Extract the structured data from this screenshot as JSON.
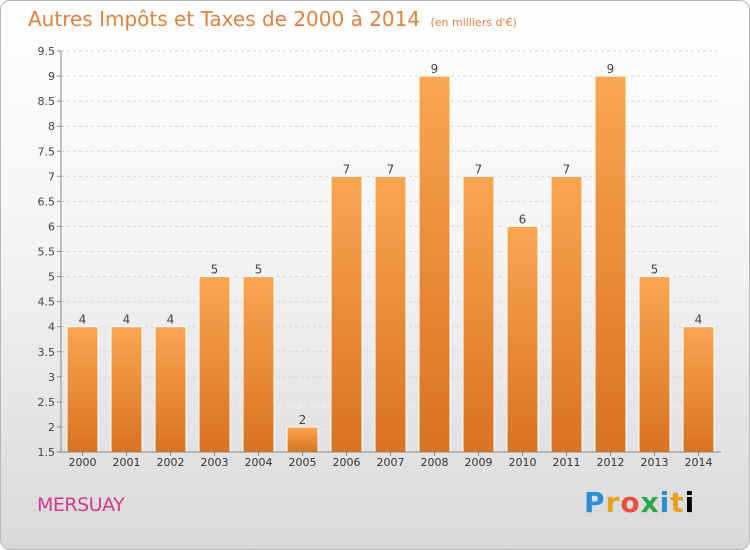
{
  "header": {
    "title": "Autres Impôts et Taxes de 2000 à 2014",
    "unit": "(en milliers d'€)"
  },
  "footer": {
    "place": "MERSUAY",
    "logo": [
      "P",
      "r",
      "o",
      "x",
      "i",
      "t",
      "i"
    ]
  },
  "colors": {
    "bar_top": "#f9a653",
    "bar_bottom": "#d9731f",
    "title": "#e3803d",
    "place": "#d23a8c"
  },
  "chart_data": {
    "type": "bar",
    "title": "Autres Impôts et Taxes de 2000 à 2014",
    "xlabel": "",
    "ylabel": "",
    "categories": [
      "2000",
      "2001",
      "2002",
      "2003",
      "2004",
      "2005",
      "2006",
      "2007",
      "2008",
      "2009",
      "2010",
      "2011",
      "2012",
      "2013",
      "2014"
    ],
    "values": [
      4,
      4,
      4,
      5,
      5,
      2,
      7,
      7,
      9,
      7,
      6,
      7,
      9,
      5,
      4
    ],
    "data_labels": [
      "4",
      "4",
      "4",
      "5",
      "5",
      "2",
      "7",
      "7",
      "9",
      "7",
      "6",
      "7",
      "9",
      "5",
      "4"
    ],
    "ylim": [
      1.5,
      9.5
    ],
    "yticks": [
      1.5,
      2,
      2.5,
      3,
      3.5,
      4,
      4.5,
      5,
      5.5,
      6,
      6.5,
      7,
      7.5,
      8,
      8.5,
      9,
      9.5
    ],
    "ytick_labels": [
      "1.5",
      "2",
      "2.5",
      "3",
      "3.5",
      "4",
      "4.5",
      "5",
      "5.5",
      "6",
      "6.5",
      "7",
      "7.5",
      "8",
      "8.5",
      "9",
      "9.5"
    ],
    "grid": true,
    "legend": "none"
  }
}
